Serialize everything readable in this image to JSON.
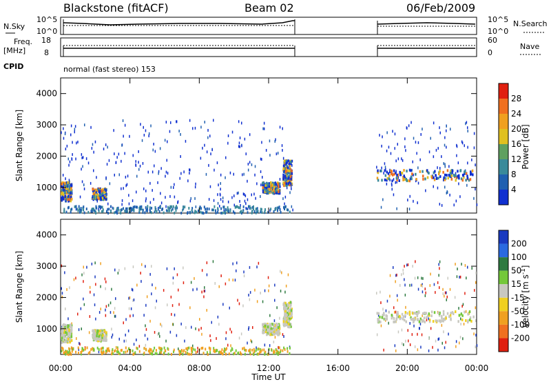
{
  "header": {
    "radar": "Blackstone (fitACF)",
    "beam": "Beam 02",
    "date": "06/Feb/2009"
  },
  "params": {
    "nsky_label": "N.Sky",
    "nsky_ticks": [
      "10^5",
      "10^0"
    ],
    "nsearch_label": "N.Search",
    "nsearch_ticks": [
      "10^5",
      "10^0"
    ],
    "freq_label": "Freq.",
    "freq_unit": "[MHz]",
    "freq_ticks": [
      "18",
      "8"
    ],
    "nave_label": "Nave",
    "nave_ticks": [
      "60",
      "0"
    ],
    "cpid_label": "CPID",
    "cpid_value": "normal (fast stereo) 153"
  },
  "colors": {
    "power_scale": [
      "#1030d0",
      "#2060b0",
      "#3a8a9a",
      "#5fa060",
      "#e0c020",
      "#f0a020",
      "#f07020",
      "#e02010"
    ],
    "velocity_scale": [
      "#1a3ac0",
      "#2a6ae0",
      "#2e7a40",
      "#74c83a",
      "#c8c8c0",
      "#f0d020",
      "#f0a020",
      "#f07020",
      "#e02010"
    ]
  },
  "chart_data": [
    {
      "type": "heatmap",
      "name": "power",
      "ylabel": "Slant Range [km]",
      "xlabel": "",
      "x_ticks": [
        "00:00",
        "04:00",
        "08:00",
        "12:00",
        "16:00",
        "20:00",
        "00:00"
      ],
      "y_ticks": [
        "1000",
        "2000",
        "3000",
        "4000"
      ],
      "ylim": [
        180,
        4500
      ],
      "xlim_hours": [
        0,
        24
      ],
      "colorbar": {
        "label": "Power [dB]",
        "ticks": [
          "4",
          "8",
          "12",
          "16",
          "20",
          "24",
          "28"
        ],
        "range": [
          0,
          32
        ]
      },
      "data_gap_hours": [
        13.4,
        18.2
      ]
    },
    {
      "type": "heatmap",
      "name": "velocity",
      "ylabel": "Slant Range [km]",
      "xlabel": "Time UT",
      "x_ticks": [
        "00:00",
        "04:00",
        "08:00",
        "12:00",
        "16:00",
        "20:00",
        "00:00"
      ],
      "y_ticks": [
        "1000",
        "2000",
        "3000",
        "4000"
      ],
      "ylim": [
        180,
        4500
      ],
      "xlim_hours": [
        0,
        24
      ],
      "colorbar": {
        "label": "Velocity [m s",
        "label_sup": "-1",
        "label_end": "]",
        "ticks": [
          "200",
          "100",
          "50",
          "15",
          "-15",
          "-50",
          "-100",
          "-200"
        ]
      },
      "data_gap_hours": [
        13.4,
        18.2
      ]
    }
  ]
}
